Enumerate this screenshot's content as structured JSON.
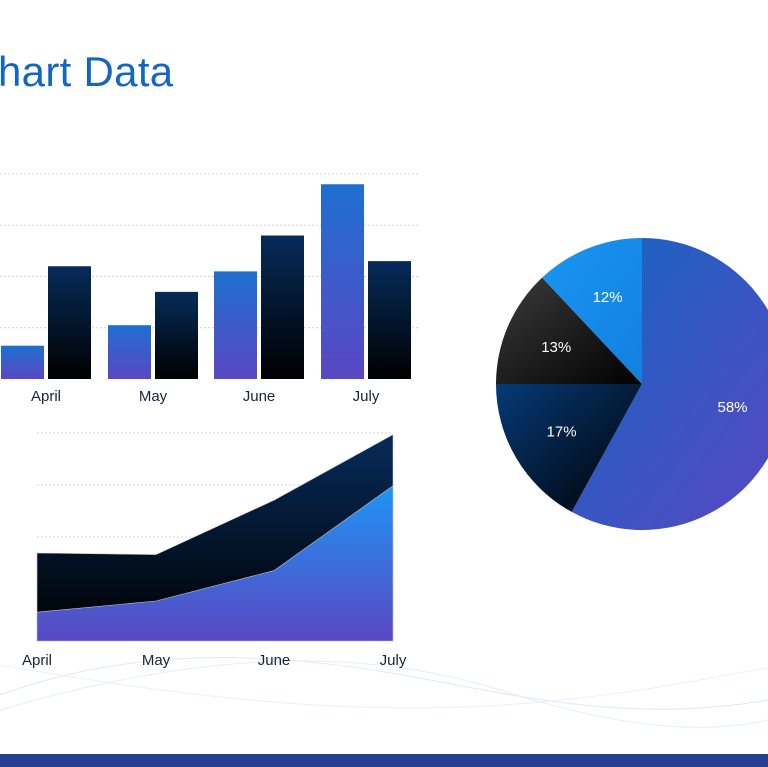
{
  "slide": {
    "title": "hart Data",
    "footer_color": "#263f92"
  },
  "chart_data": [
    {
      "type": "bar",
      "categories": [
        "April",
        "May",
        "June",
        "July"
      ],
      "series": [
        {
          "values": [
            1.3,
            2.1,
            4.2,
            7.6
          ],
          "colors": [
            "#1f6fd1",
            "#5a47c2"
          ]
        },
        {
          "values": [
            4.4,
            3.4,
            5.6,
            4.6
          ],
          "colors": [
            "#062b5a",
            "#000000"
          ]
        }
      ],
      "ylim": [
        0,
        8
      ],
      "grid": true
    },
    {
      "type": "area",
      "categories": [
        "April",
        "May",
        "June",
        "July"
      ],
      "series": [
        {
          "values": [
            5.5,
            5.4,
            8.8,
            12.9
          ],
          "colors": [
            "#062b5a",
            "#000000"
          ]
        },
        {
          "values": [
            1.8,
            2.5,
            4.4,
            9.7
          ],
          "colors": [
            "#1e95f5",
            "#5a47c2"
          ]
        }
      ],
      "ylim": [
        0,
        13
      ],
      "grid": true
    },
    {
      "type": "pie",
      "slices": [
        {
          "label": "58%",
          "value": 58,
          "colors": [
            "#1565c0",
            "#5a47c2"
          ]
        },
        {
          "label": "17%",
          "value": 17,
          "colors": [
            "#053a78",
            "#000000"
          ]
        },
        {
          "label": "13%",
          "value": 13,
          "colors": [
            "#3c3c3c",
            "#000000"
          ]
        },
        {
          "label": "12%",
          "value": 12,
          "colors": [
            "#1a95f2",
            "#1280e0"
          ]
        }
      ]
    }
  ]
}
